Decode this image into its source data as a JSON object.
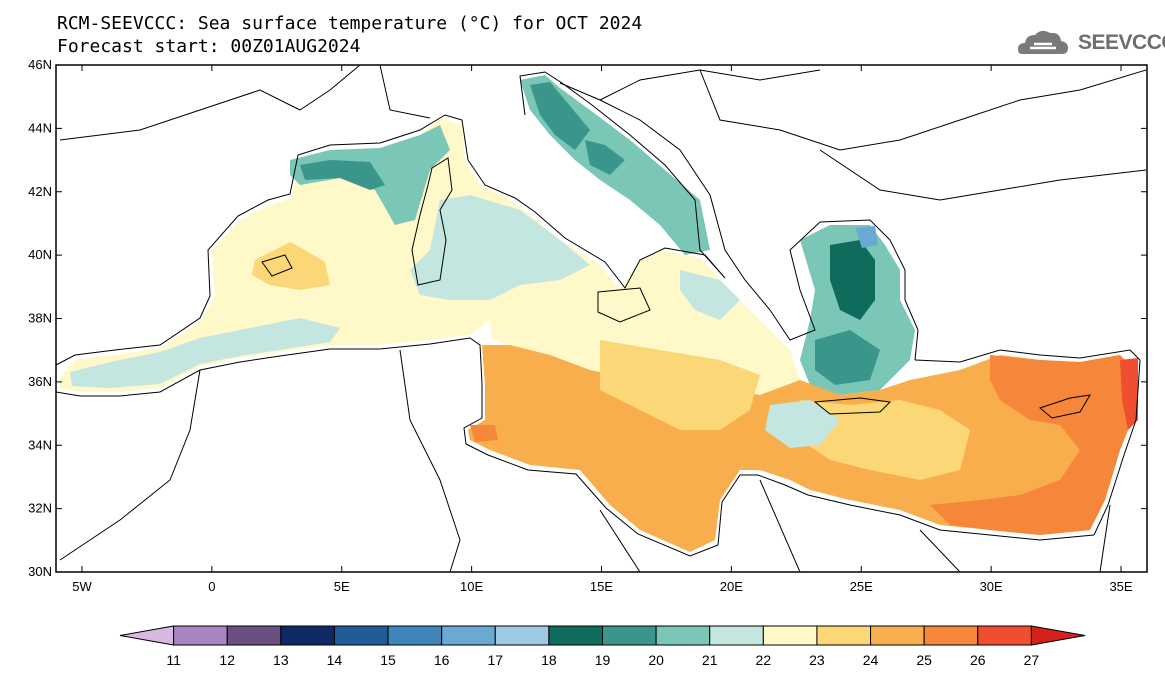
{
  "header": {
    "title": "RCM-SEEVCCC: Sea surface temperature (°C) for OCT 2024",
    "subtitle": "Forecast start: 00Z01AUG2024"
  },
  "logo": {
    "text": "SEEVCCC",
    "icon": "cloud-logo-icon"
  },
  "map": {
    "lon_range": [
      -6,
      36
    ],
    "lat_range": [
      30,
      46
    ],
    "lat_ticks": [
      "30N",
      "32N",
      "34N",
      "36N",
      "38N",
      "40N",
      "42N",
      "44N",
      "46N"
    ],
    "lon_ticks": [
      "5W",
      "0",
      "5E",
      "10E",
      "15E",
      "20E",
      "25E",
      "30E",
      "35E"
    ]
  },
  "colorbar": {
    "levels": [
      "11",
      "12",
      "13",
      "14",
      "15",
      "16",
      "17",
      "18",
      "19",
      "20",
      "21",
      "22",
      "23",
      "24",
      "25",
      "26",
      "27"
    ],
    "colors": [
      "#d8b8e0",
      "#a884c0",
      "#6a5080",
      "#0e2a66",
      "#1f5c98",
      "#3e86ba",
      "#6aa9d2",
      "#9fc9e2",
      "#0f6b5b",
      "#3a958a",
      "#7ac7b8",
      "#c4e6e0",
      "#fff8c8",
      "#fcd778",
      "#f8ae4c",
      "#f6873a",
      "#ef4e30",
      "#d6201c"
    ]
  }
}
